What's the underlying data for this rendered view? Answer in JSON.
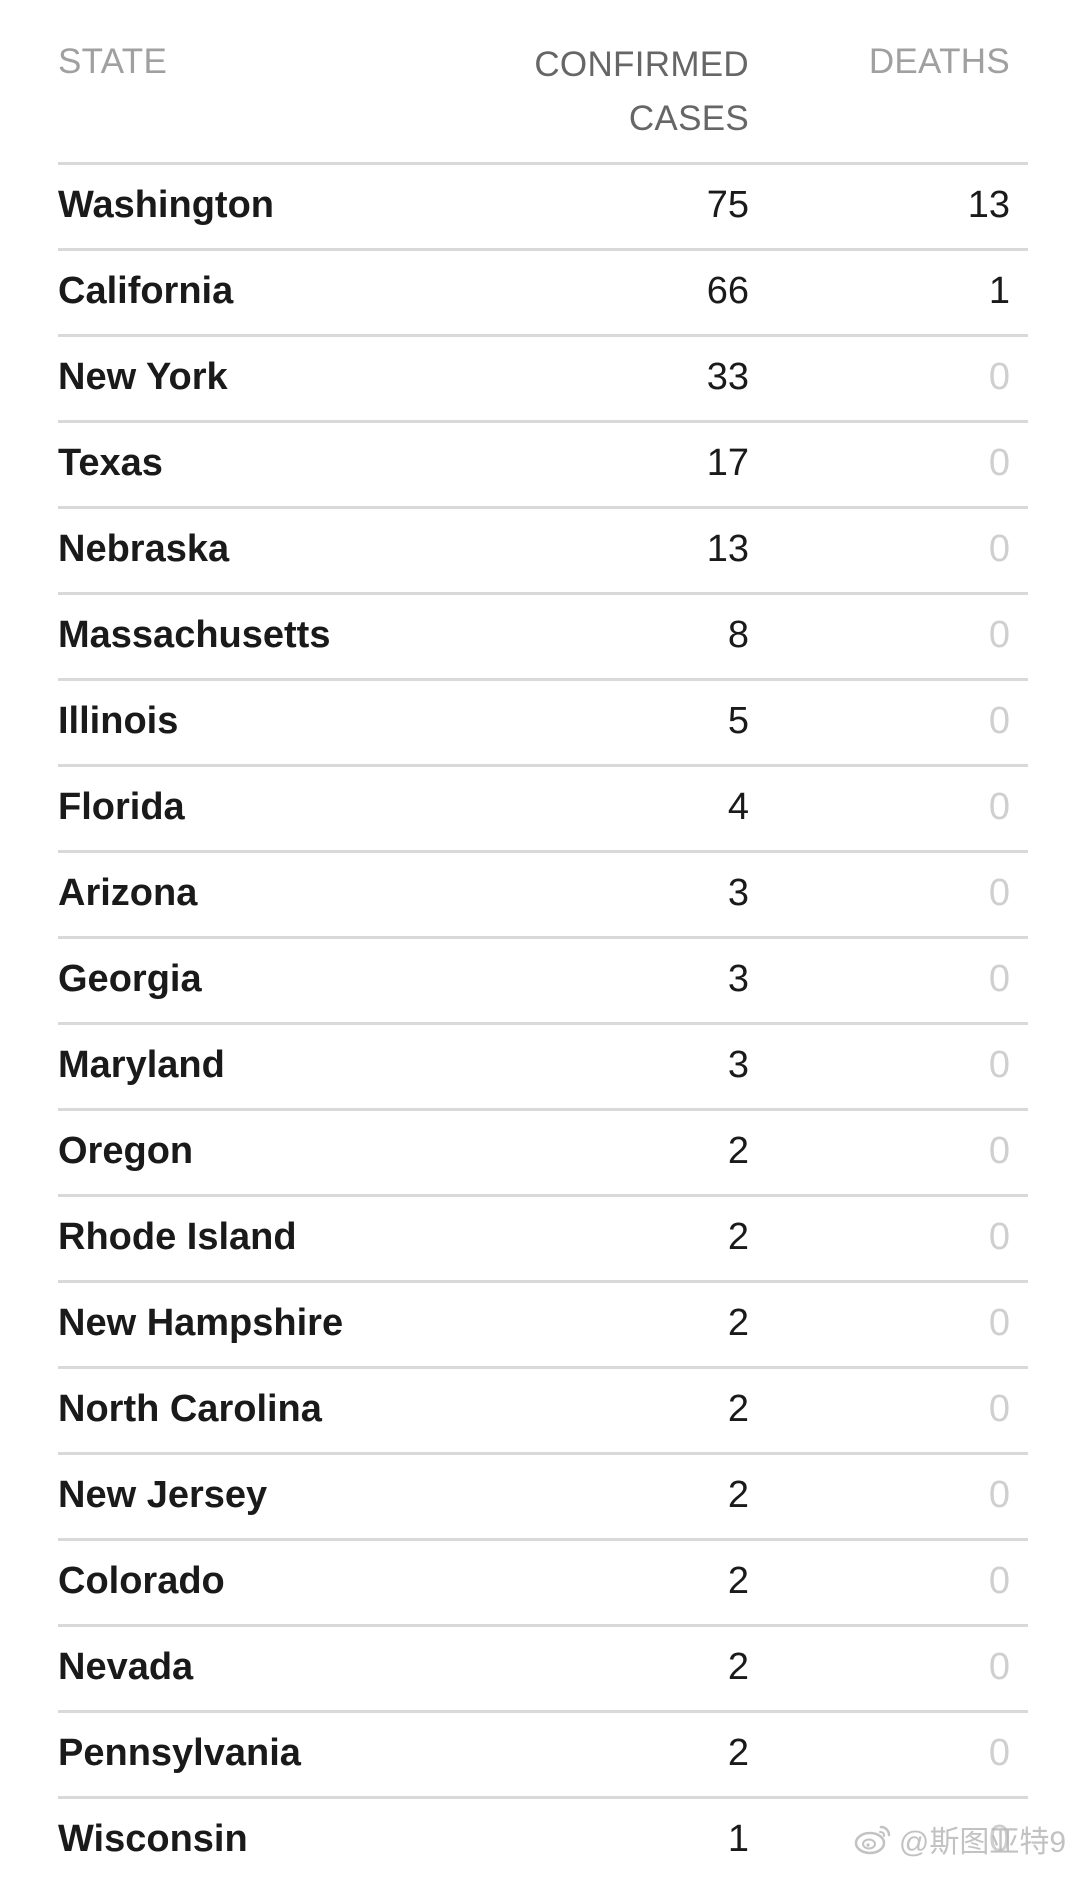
{
  "header": {
    "state": "STATE",
    "cases_line1": "CONFIRMED",
    "cases_line2": "CASES",
    "deaths": "DEATHS"
  },
  "rows": [
    {
      "state": "Washington",
      "cases": "75",
      "deaths": "13"
    },
    {
      "state": "California",
      "cases": "66",
      "deaths": "1"
    },
    {
      "state": "New York",
      "cases": "33",
      "deaths": "0"
    },
    {
      "state": "Texas",
      "cases": "17",
      "deaths": "0"
    },
    {
      "state": "Nebraska",
      "cases": "13",
      "deaths": "0"
    },
    {
      "state": "Massachusetts",
      "cases": "8",
      "deaths": "0"
    },
    {
      "state": "Illinois",
      "cases": "5",
      "deaths": "0"
    },
    {
      "state": "Florida",
      "cases": "4",
      "deaths": "0"
    },
    {
      "state": "Arizona",
      "cases": "3",
      "deaths": "0"
    },
    {
      "state": "Georgia",
      "cases": "3",
      "deaths": "0"
    },
    {
      "state": "Maryland",
      "cases": "3",
      "deaths": "0"
    },
    {
      "state": "Oregon",
      "cases": "2",
      "deaths": "0"
    },
    {
      "state": "Rhode Island",
      "cases": "2",
      "deaths": "0"
    },
    {
      "state": "New Hampshire",
      "cases": "2",
      "deaths": "0"
    },
    {
      "state": "North Carolina",
      "cases": "2",
      "deaths": "0"
    },
    {
      "state": "New Jersey",
      "cases": "2",
      "deaths": "0"
    },
    {
      "state": "Colorado",
      "cases": "2",
      "deaths": "0"
    },
    {
      "state": "Nevada",
      "cases": "2",
      "deaths": "0"
    },
    {
      "state": "Pennsylvania",
      "cases": "2",
      "deaths": "0"
    },
    {
      "state": "Wisconsin",
      "cases": "1",
      "deaths": "0"
    }
  ],
  "watermark": {
    "icon": "weibo-logo-icon",
    "text": "@斯图亚特9"
  },
  "colors": {
    "text": "#1a1a1a",
    "muted_header": "#a0a0a0",
    "zero_value": "#cfcfcf",
    "divider": "#d9d9d9"
  }
}
